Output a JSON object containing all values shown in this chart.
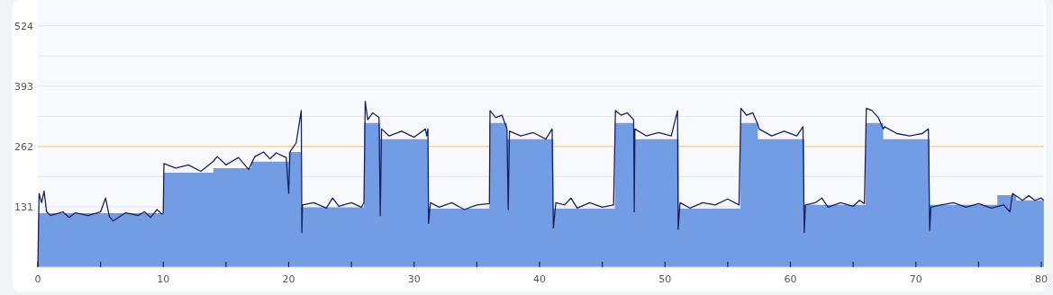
{
  "chart_data": {
    "type": "line",
    "xlim": [
      0,
      80.2
    ],
    "ylim": [
      0,
      580
    ],
    "xticks": [
      0,
      {
        "value": 5,
        "label": null
      },
      10,
      {
        "value": 15,
        "label": null
      },
      20,
      {
        "value": 25,
        "label": null
      },
      30,
      {
        "value": 35,
        "label": null
      },
      40,
      {
        "value": 45,
        "label": null
      },
      50,
      {
        "value": 55,
        "label": null
      },
      60,
      {
        "value": 65,
        "label": null
      },
      70,
      {
        "value": 75,
        "label": null
      },
      80
    ],
    "yticks": [
      131,
      {
        "value": 196.5,
        "label": null
      },
      262,
      {
        "value": 327.5,
        "label": null
      },
      393,
      {
        "value": 458.5,
        "label": null
      },
      524
    ],
    "grid": "y",
    "tick_labels": true,
    "ref_lines": [
      {
        "axis": "y",
        "value": 262,
        "color": "#f7d48b"
      }
    ],
    "series": [
      {
        "type": "area",
        "color": "#729ce4",
        "x": [
          0,
          0.05,
          10,
          10,
          14,
          14,
          17,
          17,
          20,
          20,
          21,
          21,
          26,
          26,
          27.3,
          27.3,
          31.1,
          31.1,
          36,
          36,
          37.4,
          37.4,
          41.1,
          41.1,
          46,
          46,
          47.5,
          47.5,
          51.1,
          51.1,
          56,
          56,
          57.4,
          57.4,
          61.1,
          61.1,
          66,
          66,
          67.4,
          67.4,
          71.1,
          71.1,
          76.5,
          76.5,
          78,
          78,
          80.2
        ],
        "values": [
          0,
          117,
          117,
          205,
          205,
          215,
          215,
          229,
          229,
          250,
          250,
          130,
          130,
          313,
          313,
          278,
          278,
          127,
          127,
          313,
          313,
          278,
          278,
          127,
          127,
          313,
          313,
          278,
          278,
          127,
          127,
          313,
          313,
          278,
          278,
          135,
          135,
          313,
          313,
          278,
          278,
          135,
          135,
          156,
          156,
          145,
          145
        ]
      },
      {
        "color": "#1a2163",
        "x": [
          0,
          0.1,
          0.3,
          0.5,
          0.7,
          1,
          2,
          2.5,
          3,
          4,
          5,
          5.4,
          5.7,
          6,
          7,
          8,
          8.5,
          9,
          9.5,
          9.9,
          10,
          10.05,
          11,
          12,
          13,
          14,
          14.3,
          15,
          16,
          16.8,
          17.3,
          18,
          18.5,
          19,
          19.8,
          20,
          20.1,
          20.6,
          21,
          21.05,
          21.1,
          22,
          23,
          23.5,
          24,
          25,
          25.8,
          26,
          26.1,
          26.3,
          26.7,
          27.2,
          27.3,
          27.4,
          28,
          29,
          30,
          30.9,
          31,
          31.1,
          31.15,
          31.3,
          32,
          33,
          34,
          35,
          36,
          36.05,
          36.5,
          37,
          37.4,
          37.5,
          37.6,
          38.5,
          39.5,
          40.5,
          41,
          41.1,
          41.3,
          42,
          42.5,
          43,
          44,
          45,
          45.9,
          46.05,
          46.5,
          47,
          47.5,
          47.55,
          47.6,
          48.5,
          49.5,
          50.5,
          51,
          51.05,
          51.2,
          52,
          53,
          54,
          55,
          55.9,
          56.05,
          56.5,
          57,
          57.4,
          57.5,
          58.5,
          59.5,
          60.5,
          61,
          61.1,
          61.2,
          62,
          62.5,
          63,
          64,
          65,
          65.5,
          65.9,
          66.05,
          66.5,
          67,
          67.4,
          67.5,
          68.5,
          69.5,
          70.5,
          71,
          71.1,
          71.2,
          72,
          73,
          74,
          75,
          76,
          77,
          77.5,
          77.7,
          78.5,
          79,
          79.5,
          80,
          80.2
        ],
        "values": [
          0,
          160,
          140,
          165,
          120,
          112,
          120,
          108,
          118,
          112,
          120,
          150,
          110,
          100,
          118,
          112,
          120,
          108,
          125,
          115,
          118,
          225,
          215,
          222,
          208,
          230,
          240,
          222,
          238,
          212,
          240,
          250,
          235,
          248,
          238,
          160,
          250,
          270,
          340,
          75,
          135,
          140,
          128,
          150,
          132,
          140,
          130,
          140,
          360,
          320,
          335,
          325,
          112,
          300,
          285,
          295,
          282,
          300,
          285,
          300,
          95,
          140,
          130,
          140,
          125,
          135,
          138,
          340,
          325,
          330,
          300,
          125,
          295,
          285,
          292,
          278,
          300,
          85,
          140,
          135,
          150,
          128,
          140,
          130,
          135,
          340,
          330,
          335,
          320,
          120,
          300,
          285,
          292,
          285,
          340,
          82,
          140,
          128,
          140,
          135,
          148,
          135,
          345,
          330,
          335,
          310,
          300,
          285,
          295,
          285,
          305,
          75,
          135,
          140,
          150,
          130,
          140,
          132,
          145,
          138,
          345,
          340,
          325,
          300,
          305,
          290,
          285,
          290,
          300,
          80,
          130,
          135,
          140,
          130,
          138,
          128,
          135,
          120,
          160,
          145,
          155,
          145,
          150,
          145
        ]
      }
    ]
  }
}
